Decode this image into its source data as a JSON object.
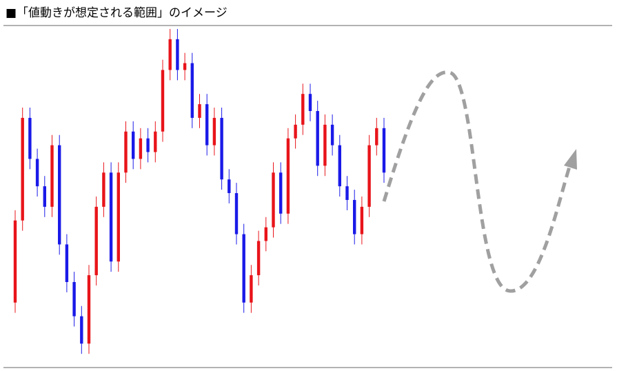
{
  "chart_data": {
    "type": "candlestick",
    "title": "■「値動きが想定される範囲」のイメージ",
    "up_color": "#e8141a",
    "down_color": "#1a1ae8",
    "ylim": [
      0,
      100
    ],
    "open": [
      19,
      43,
      73,
      61,
      53,
      47,
      65,
      36,
      25,
      15,
      7,
      27,
      47,
      57,
      31,
      57,
      69,
      61,
      67,
      63,
      69,
      87,
      96,
      87,
      89,
      73,
      77,
      65,
      73,
      55,
      51,
      39,
      19,
      27,
      37,
      41,
      57,
      45,
      67,
      71,
      80,
      75,
      59,
      71,
      65,
      53,
      49,
      39,
      47,
      65,
      70
    ],
    "high": [
      46,
      76,
      76,
      64,
      56,
      68,
      68,
      39,
      28,
      18,
      30,
      50,
      60,
      60,
      60,
      72,
      72,
      70,
      70,
      72,
      90,
      99,
      99,
      92,
      92,
      80,
      80,
      76,
      76,
      58,
      54,
      42,
      30,
      40,
      44,
      60,
      60,
      70,
      74,
      83,
      83,
      78,
      74,
      74,
      68,
      56,
      52,
      50,
      68,
      73,
      73
    ],
    "low": [
      16,
      40,
      58,
      50,
      44,
      44,
      33,
      22,
      12,
      4,
      4,
      24,
      44,
      28,
      28,
      54,
      58,
      58,
      60,
      60,
      66,
      84,
      84,
      84,
      70,
      70,
      62,
      62,
      52,
      48,
      36,
      16,
      16,
      24,
      34,
      38,
      42,
      42,
      64,
      68,
      72,
      56,
      56,
      62,
      50,
      46,
      36,
      36,
      44,
      62,
      54
    ],
    "close": [
      43,
      73,
      61,
      53,
      47,
      65,
      36,
      25,
      15,
      7,
      27,
      47,
      57,
      31,
      57,
      69,
      61,
      67,
      63,
      69,
      87,
      96,
      87,
      89,
      73,
      77,
      65,
      73,
      55,
      51,
      39,
      19,
      27,
      37,
      41,
      57,
      45,
      67,
      71,
      80,
      75,
      59,
      71,
      65,
      53,
      49,
      39,
      47,
      65,
      70,
      57
    ]
  }
}
